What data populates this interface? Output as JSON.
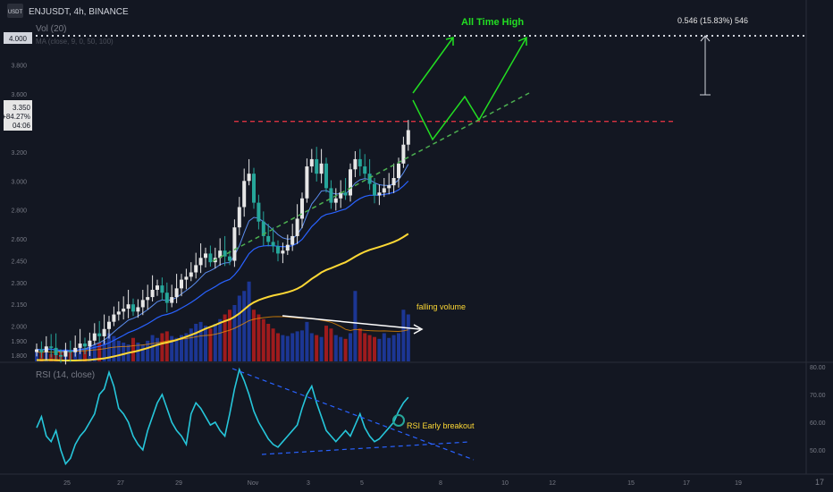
{
  "header": {
    "symbol_line": "ENJUSDT, 4h, BINANCE",
    "vol_label": "Vol (20)",
    "ma_label": "MA (close, 9, 0, 50, 100)",
    "rsi_label": "RSI (14, close)",
    "logo_badge": "USDT",
    "tv_mark": "17"
  },
  "price_panel": {
    "current_price": "3.350",
    "change_pct": "+84.27%",
    "countdown": "04:06",
    "marker_price": "4.000",
    "measure_label": "0.546 (15.83%) 546"
  },
  "annotations": {
    "ath": "All Time High",
    "falling_volume": "falling volume",
    "rsi_breakout": "RSI Early breakout"
  },
  "colors": {
    "up": "#e6e6e6",
    "down": "#26a69a",
    "rsi": "#26c6da",
    "ema_fast": "#5b8def",
    "ema_slow": "#2962ff",
    "ma_long": "#fdd835",
    "resistance": "#f23645",
    "support": "#4caf50",
    "ath_arrow": "#22dd22",
    "vol_up": "#1e3ca8",
    "vol_down": "#b71c1c"
  },
  "chart_data": {
    "type": "candlestick",
    "price_axis_ticks": [
      "4.000",
      "3.800",
      "3.600",
      "3.400",
      "3.200",
      "3.000",
      "2.800",
      "2.600",
      "2.450",
      "2.300",
      "2.150",
      "2.000",
      "1.900",
      "1.800"
    ],
    "rsi_axis_ticks": [
      "80.00",
      "70.00",
      "60.00",
      "50.00"
    ],
    "x_ticks": [
      "25",
      "27",
      "29",
      "Nov",
      "3",
      "5",
      "8",
      "10",
      "12",
      "15",
      "17",
      "19"
    ],
    "resistance_level": 3.41,
    "ath_level": 4.0,
    "closes": [
      1.84,
      1.82,
      1.86,
      1.85,
      1.8,
      1.79,
      1.83,
      1.82,
      1.85,
      1.88,
      1.86,
      1.9,
      1.95,
      1.93,
      1.98,
      2.03,
      2.08,
      2.1,
      2.12,
      2.15,
      2.1,
      2.13,
      2.18,
      2.2,
      2.25,
      2.28,
      2.23,
      2.16,
      2.2,
      2.26,
      2.32,
      2.34,
      2.37,
      2.42,
      2.47,
      2.5,
      2.44,
      2.47,
      2.52,
      2.48,
      2.45,
      2.68,
      2.82,
      3.0,
      3.05,
      2.85,
      2.72,
      2.62,
      2.58,
      2.55,
      2.5,
      2.52,
      2.56,
      2.62,
      2.74,
      2.88,
      3.1,
      3.15,
      3.05,
      3.12,
      2.95,
      2.85,
      2.88,
      2.92,
      2.9,
      3.08,
      3.15,
      3.1,
      3.05,
      2.98,
      2.9,
      2.92,
      2.95,
      2.97,
      3.02,
      3.12,
      3.25,
      3.35
    ],
    "rsi": [
      58,
      62,
      55,
      53,
      57,
      50,
      45,
      47,
      52,
      55,
      57,
      60,
      63,
      70,
      72,
      78,
      73,
      65,
      63,
      60,
      55,
      52,
      50,
      57,
      62,
      67,
      70,
      65,
      60,
      57,
      55,
      52,
      63,
      67,
      65,
      62,
      59,
      60,
      57,
      55,
      63,
      72,
      79,
      75,
      70,
      64,
      60,
      57,
      54,
      52,
      51,
      53,
      55,
      57,
      59,
      65,
      70,
      73,
      67,
      62,
      57,
      55,
      53,
      55,
      57,
      55,
      59,
      63,
      58,
      55,
      53,
      54,
      56,
      58,
      60,
      64,
      67,
      69
    ],
    "volume": [
      0.1,
      0.09,
      0.12,
      0.08,
      0.11,
      0.1,
      0.13,
      0.12,
      0.11,
      0.15,
      0.14,
      0.16,
      0.18,
      0.2,
      0.22,
      0.3,
      0.27,
      0.22,
      0.2,
      0.18,
      0.25,
      0.2,
      0.18,
      0.22,
      0.28,
      0.25,
      0.3,
      0.32,
      0.27,
      0.25,
      0.28,
      0.3,
      0.35,
      0.4,
      0.42,
      0.38,
      0.35,
      0.4,
      0.45,
      0.5,
      0.55,
      0.6,
      0.7,
      0.75,
      0.85,
      0.55,
      0.5,
      0.45,
      0.4,
      0.35,
      0.3,
      0.28,
      0.27,
      0.3,
      0.32,
      0.33,
      0.42,
      0.3,
      0.28,
      0.26,
      0.38,
      0.35,
      0.28,
      0.26,
      0.24,
      0.3,
      0.75,
      0.35,
      0.3,
      0.28,
      0.26,
      0.24,
      0.3,
      0.25,
      0.28,
      0.3,
      0.55,
      0.5
    ]
  }
}
